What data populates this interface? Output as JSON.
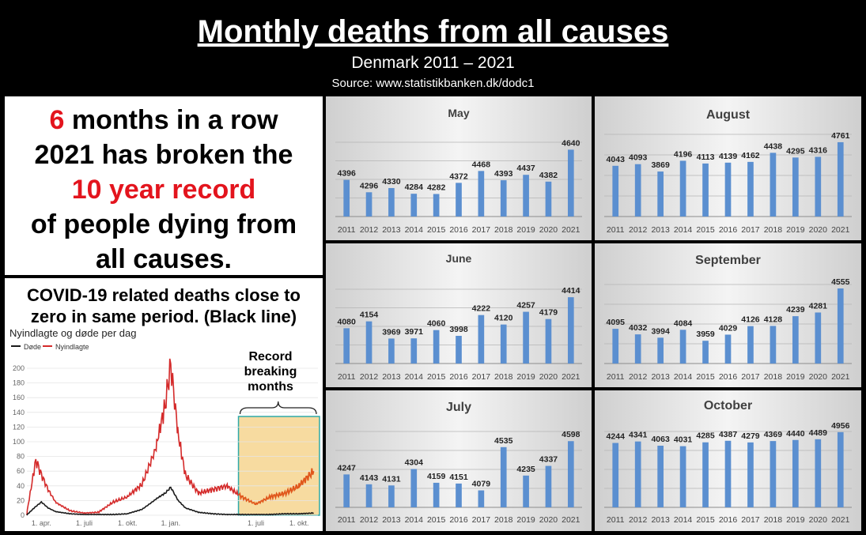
{
  "header": {
    "title": "Monthly deaths from all causes",
    "subtitle": "Denmark 2011 – 2021",
    "source": "Source: www.statistikbanken.dk/dodc1"
  },
  "message": {
    "highlight_number": "6",
    "line1_rest": " months in a row",
    "line2": "2021 has broken the",
    "line3": "10 year record",
    "line4": "of people dying from",
    "line5": "all causes."
  },
  "covid": {
    "heading_line1": "COVID-19 related deaths close to",
    "heading_line2": "zero in same period. (Black line)",
    "chart_title": "Nyindlagte og døde per dag",
    "legend_dead": "Døde",
    "legend_admitted": "Nyindlagte",
    "annotation_line1": "Record",
    "annotation_line2": "breaking",
    "annotation_line3": "months",
    "colors": {
      "dead": "#1a1a1a",
      "admitted": "#d42a2a",
      "highlight_fill": "#f7dba0",
      "highlight_border": "#2fa9a9",
      "admitted_in_highlight": "#e0571c"
    }
  },
  "chart_data": [
    {
      "type": "bar",
      "title": "May",
      "categories": [
        "2011",
        "2012",
        "2013",
        "2014",
        "2015",
        "2016",
        "2017",
        "2018",
        "2019",
        "2020",
        "2021"
      ],
      "values": [
        4396,
        4296,
        4330,
        4284,
        4282,
        4372,
        4468,
        4393,
        4437,
        4382,
        4640
      ],
      "ylim": [
        4100,
        4700
      ],
      "grid": true,
      "bar_color": "#5b8fd0"
    },
    {
      "type": "bar",
      "title": "August",
      "categories": [
        "2011",
        "2012",
        "2013",
        "2014",
        "2015",
        "2016",
        "2017",
        "2018",
        "2019",
        "2020",
        "2021"
      ],
      "values": [
        4043,
        4093,
        3869,
        4196,
        4113,
        4139,
        4162,
        4438,
        4295,
        4316,
        4761
      ],
      "ylim": [
        2500,
        5000
      ],
      "grid": true,
      "bar_color": "#5b8fd0"
    },
    {
      "type": "bar",
      "title": "June",
      "categories": [
        "2011",
        "2012",
        "2013",
        "2014",
        "2015",
        "2016",
        "2017",
        "2018",
        "2019",
        "2020",
        "2021"
      ],
      "values": [
        4080,
        4154,
        3969,
        3971,
        4060,
        3998,
        4222,
        4120,
        4257,
        4179,
        4414
      ],
      "ylim": [
        3700,
        4500
      ],
      "grid": true,
      "bar_color": "#5b8fd0"
    },
    {
      "type": "bar",
      "title": "September",
      "categories": [
        "2011",
        "2012",
        "2013",
        "2014",
        "2015",
        "2016",
        "2017",
        "2018",
        "2019",
        "2020",
        "2021"
      ],
      "values": [
        4095,
        4032,
        3994,
        4084,
        3959,
        4029,
        4126,
        4128,
        4239,
        4281,
        4555
      ],
      "ylim": [
        3700,
        4600
      ],
      "grid": true,
      "bar_color": "#5b8fd0"
    },
    {
      "type": "bar",
      "title": "July",
      "categories": [
        "2011",
        "2012",
        "2013",
        "2014",
        "2015",
        "2016",
        "2017",
        "2018",
        "2019",
        "2020",
        "2021"
      ],
      "values": [
        4247,
        4143,
        4131,
        4304,
        4159,
        4151,
        4079,
        4535,
        4235,
        4337,
        4598
      ],
      "ylim": [
        3900,
        4700
      ],
      "grid": true,
      "bar_color": "#5b8fd0"
    },
    {
      "type": "bar",
      "title": "October",
      "categories": [
        "2011",
        "2012",
        "2013",
        "2014",
        "2015",
        "2016",
        "2017",
        "2018",
        "2019",
        "2020",
        "2021"
      ],
      "values": [
        4244,
        4341,
        4063,
        4031,
        4285,
        4387,
        4279,
        4369,
        4440,
        4489,
        4956
      ],
      "ylim": [
        0,
        5000
      ],
      "grid": true,
      "bar_color": "#5b8fd0"
    },
    {
      "type": "line",
      "title": "Nyindlagte og døde per dag",
      "ylim": [
        0,
        200
      ],
      "yticks": [
        0,
        20,
        40,
        60,
        80,
        100,
        120,
        140,
        160,
        180,
        200
      ],
      "xtick_labels": [
        "1. apr.",
        "1. juli",
        "1. okt.",
        "1. jan.",
        "1. juli",
        "1. okt."
      ],
      "legend": "top-left",
      "x": [
        "2020-03-01",
        "2020-03-20",
        "2020-04-01",
        "2020-04-15",
        "2020-05-01",
        "2020-06-01",
        "2020-07-01",
        "2020-08-01",
        "2020-09-01",
        "2020-10-01",
        "2020-11-01",
        "2020-12-01",
        "2020-12-20",
        "2021-01-01",
        "2021-01-15",
        "2021-02-01",
        "2021-03-01",
        "2021-04-01",
        "2021-05-01",
        "2021-06-01",
        "2021-07-01",
        "2021-08-01",
        "2021-09-01",
        "2021-10-01",
        "2021-11-01"
      ],
      "series": [
        {
          "name": "Nyindlagte",
          "values": [
            0,
            75,
            55,
            35,
            18,
            6,
            3,
            4,
            18,
            25,
            42,
            92,
            150,
            205,
            120,
            55,
            30,
            35,
            40,
            25,
            15,
            25,
            30,
            40,
            60
          ]
        },
        {
          "name": "Døde",
          "values": [
            0,
            12,
            18,
            10,
            5,
            2,
            1,
            1,
            1,
            2,
            8,
            22,
            30,
            38,
            22,
            10,
            4,
            2,
            1,
            1,
            1,
            1,
            2,
            2,
            3
          ]
        }
      ]
    }
  ]
}
